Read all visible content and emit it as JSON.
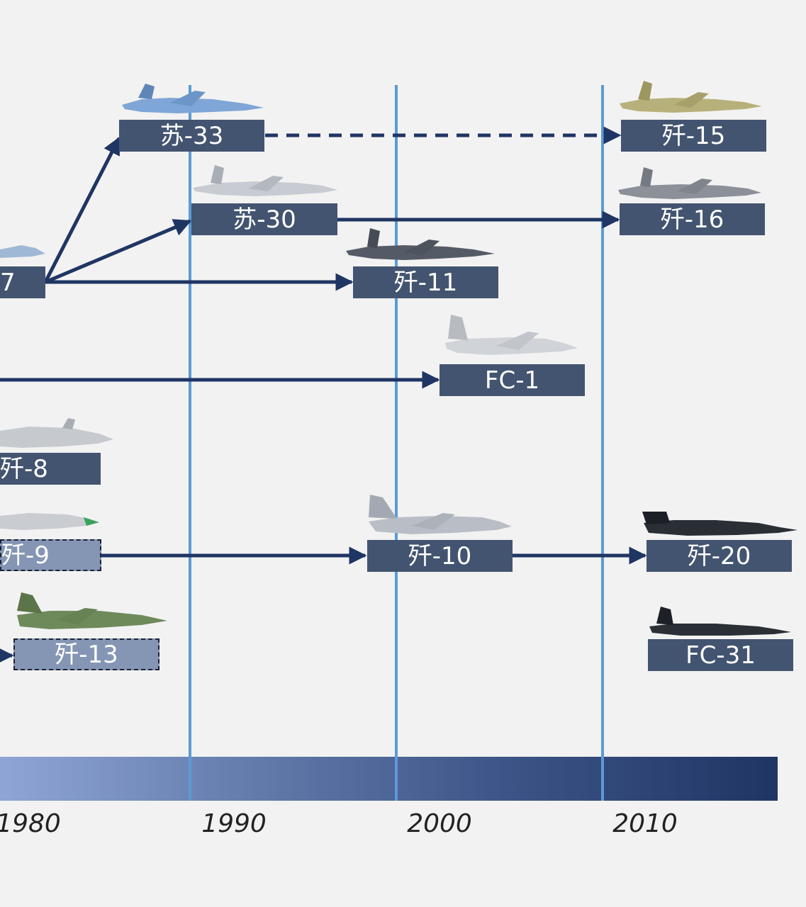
{
  "diagram": {
    "years": [
      "1980",
      "1990",
      "2000",
      "2010"
    ],
    "nodes": {
      "su27": "7",
      "su33": "苏-33",
      "su30": "苏-30",
      "j11": "歼-11",
      "fc1": "FC-1",
      "j8": "歼-8",
      "j9": "歼-9",
      "j13": "歼-13",
      "j10": "歼-10",
      "j15": "歼-15",
      "j16": "歼-16",
      "j20": "歼-20",
      "fc31": "FC-31"
    },
    "colors": {
      "box": "#435470",
      "legacy_box": "#8496b4",
      "arrow": "#1f3563",
      "year_line": "#5b9bd5",
      "background": "#f2f2f2"
    },
    "edges": [
      {
        "from": "su27",
        "to": "su33",
        "style": "solid"
      },
      {
        "from": "su27",
        "to": "su30",
        "style": "solid"
      },
      {
        "from": "su27",
        "to": "j11",
        "style": "solid"
      },
      {
        "from": "su33",
        "to": "j15",
        "style": "dashed"
      },
      {
        "from": "su30",
        "to": "j16",
        "style": "solid"
      },
      {
        "from": "offscreen",
        "to": "fc1",
        "style": "solid"
      },
      {
        "from": "j9",
        "to": "j10",
        "style": "solid"
      },
      {
        "from": "j10",
        "to": "j20",
        "style": "solid"
      },
      {
        "from": "offscreen",
        "to": "j13",
        "style": "solid"
      }
    ]
  }
}
